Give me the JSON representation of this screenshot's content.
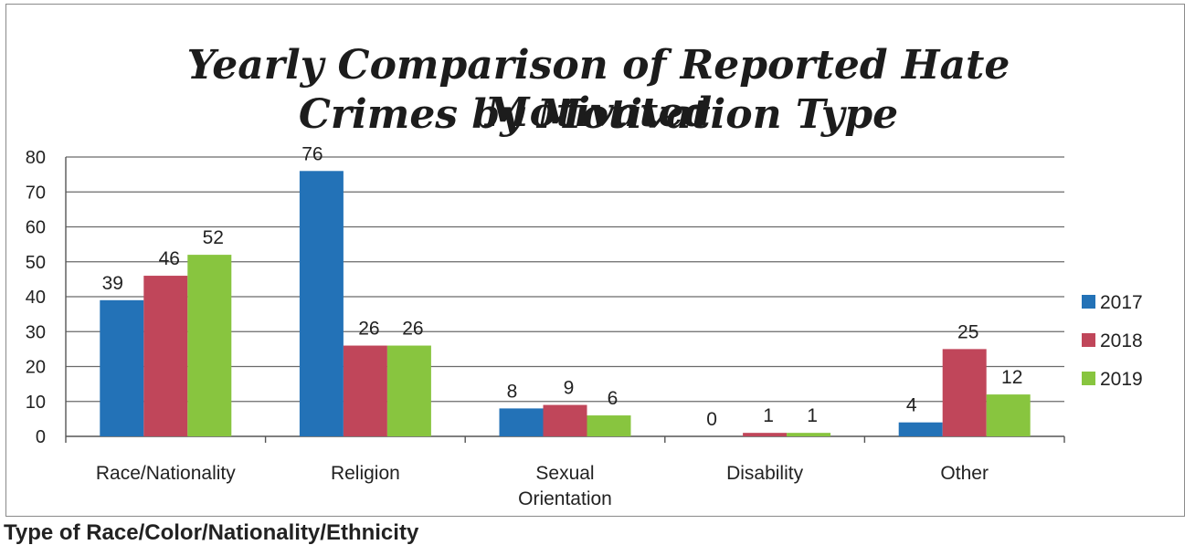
{
  "chart_data": {
    "type": "bar",
    "title": "Yearly Comparison of Reported Hate Motivated Crimes by Motivation Type",
    "title_lines": [
      "Yearly Comparison of Reported Hate Motivated",
      "Crimes by Motivation Type"
    ],
    "categories": [
      "Race/Nationality",
      "Religion",
      "Sexual Orientation",
      "Disability",
      "Other"
    ],
    "category_label_lines": [
      [
        "Race/Nationality"
      ],
      [
        "Religion"
      ],
      [
        "Sexual",
        "Orientation"
      ],
      [
        "Disability"
      ],
      [
        "Other"
      ]
    ],
    "series": [
      {
        "name": "2017",
        "values": [
          39,
          76,
          8,
          0,
          4
        ],
        "color": "#2372b7"
      },
      {
        "name": "2018",
        "values": [
          46,
          26,
          9,
          1,
          25
        ],
        "color": "#c0465a"
      },
      {
        "name": "2019",
        "values": [
          52,
          26,
          6,
          1,
          12
        ],
        "color": "#88c53f"
      }
    ],
    "data_labels": true,
    "ylim": [
      0,
      80
    ],
    "yticks": [
      0,
      10,
      20,
      30,
      40,
      50,
      60,
      70,
      80
    ],
    "grid": true,
    "legend": "right",
    "xlabel": "",
    "ylabel": ""
  },
  "caption": "Type of Race/Color/Nationality/Ethnicity"
}
